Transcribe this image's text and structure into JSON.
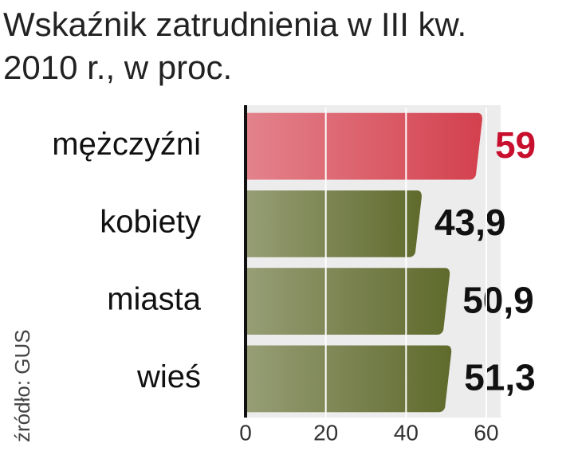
{
  "chart_data": {
    "type": "bar",
    "orientation": "horizontal",
    "title": [
      "Wskaźnik zatrudnienia w III kw.",
      "2010 r., w proc."
    ],
    "source": "źródło: GUS",
    "categories": [
      "mężczyźni",
      "kobiety",
      "miasta",
      "wieś"
    ],
    "values": [
      59,
      43.9,
      50.9,
      51.3
    ],
    "value_labels": [
      "59",
      "43,9",
      "50,9",
      "51,3"
    ],
    "colors": [
      "#d4404e",
      "#5f6a2c",
      "#5f6a2c",
      "#5f6a2c"
    ],
    "label_colors": [
      "#c8102e",
      "#111111",
      "#111111",
      "#111111"
    ],
    "xlim": [
      0,
      60
    ],
    "xticks": [
      0,
      20,
      40,
      60
    ],
    "grid": true
  }
}
